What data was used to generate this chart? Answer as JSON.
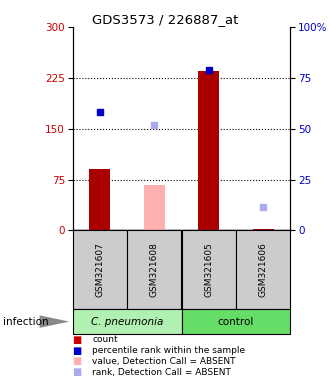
{
  "title": "GDS3573 / 226887_at",
  "samples": [
    "GSM321607",
    "GSM321608",
    "GSM321605",
    "GSM321606"
  ],
  "bar_values": [
    90,
    67,
    235,
    2
  ],
  "bar_colors": [
    "#aa0000",
    "#ffb0b0",
    "#aa0000",
    "#aa0000"
  ],
  "bar_absent": [
    false,
    true,
    false,
    false
  ],
  "rank_values": [
    175,
    155,
    237,
    35
  ],
  "rank_colors": [
    "#0000cc",
    "#aaaaee",
    "#0000cc",
    "#aaaaee"
  ],
  "rank_absent": [
    false,
    true,
    false,
    true
  ],
  "ylim_left": [
    0,
    300
  ],
  "ylim_right": [
    0,
    100
  ],
  "yticks_left": [
    0,
    75,
    150,
    225,
    300
  ],
  "yticks_right": [
    0,
    25,
    50,
    75,
    100
  ],
  "ytick_labels_right": [
    "0",
    "25",
    "50",
    "75",
    "100%"
  ],
  "dotted_lines": [
    75,
    150,
    225
  ],
  "group_label_1": "C. pneumonia",
  "group_label_2": "control",
  "group_bg_1": "#b0f0b0",
  "group_bg_2": "#66dd66",
  "sample_box_color": "#cccccc",
  "infection_label": "infection",
  "legend_items": [
    {
      "label": "count",
      "color": "#cc0000"
    },
    {
      "label": "percentile rank within the sample",
      "color": "#0000cc"
    },
    {
      "label": "value, Detection Call = ABSENT",
      "color": "#ffb0b0"
    },
    {
      "label": "rank, Detection Call = ABSENT",
      "color": "#aaaaee"
    }
  ]
}
